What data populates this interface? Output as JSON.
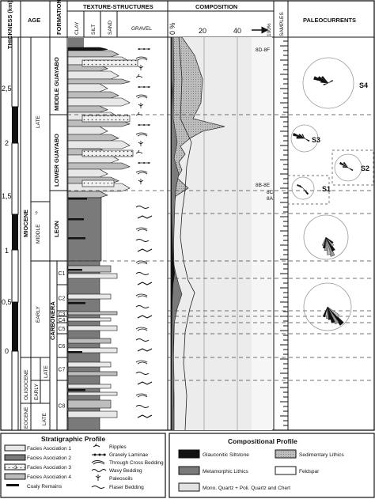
{
  "headers": {
    "thickness": "THICKNESS (km)",
    "age": "AGE",
    "formation": "FORMATION",
    "texture_structures": "TEXTURE-STRUCTURES",
    "clay": "CLAY",
    "silt": "SILT",
    "sand": "SAND",
    "gravel": "GRAVEL",
    "composition": "COMPOSITION",
    "samples": "SAMPLES",
    "paleocurrents": "PALEOCURRENTS"
  },
  "thickness_axis": {
    "ticks": [
      "2,5",
      "2",
      "1,5",
      "1",
      "0,5",
      "0"
    ]
  },
  "composition_axis": {
    "ticks": [
      "0 %",
      "20",
      "40",
      "100%"
    ]
  },
  "epochs": [
    "MIOCENE",
    "OLIGOCENE",
    "EOCENE"
  ],
  "miocene_subdivisions": [
    "LATE",
    "MIDDLE",
    "EARLY"
  ],
  "oligocene_subdivisions": [
    "LATE",
    "EARLY"
  ],
  "eocene_subdivisions": [
    "LATE"
  ],
  "question_mark": "?",
  "formations": [
    "MIDDLE GUAYABO",
    "LOWER GUAYABO",
    "LEON",
    "CARBONERA"
  ],
  "carbonera_members": [
    "C1",
    "C2",
    "C3",
    "C4",
    "C5",
    "C6",
    "C7",
    "C8"
  ],
  "sample_labels": [
    "8D-8F",
    "8B-8E",
    "8C",
    "8A"
  ],
  "paleocurrent_stations": [
    "S4",
    "S3",
    "S2",
    "S1"
  ],
  "stratigraphic_legend": {
    "title": "Stratigraphic Profile",
    "facies": [
      "Facies Asociation 1",
      "Facies Asociation 2",
      "Facies Asociation 3",
      "Facies Asociation 4"
    ],
    "extra": "Coaly Remains",
    "structures": [
      "Ripples",
      "Gravely Laminae",
      "Through Cross Bedding",
      "Wavy Bedding",
      "Paleosoils",
      "Flaser Bedding"
    ]
  },
  "compositional_legend": {
    "title": "Compositional Profile",
    "items": [
      "Glauconitic Siltstone",
      "Sedimentary Lithics",
      "Metamorphic Lithics",
      "Feldspar",
      "Mono. Quartz + Poli. Quartz and Chert"
    ]
  },
  "colors": {
    "line": "#111111",
    "facies1": "#e8e8e8",
    "facies2": "#7a7a7a",
    "facies4": "#bdbdbd",
    "coal": "#111111",
    "quartz_area": "#d9d9d9",
    "metamorphic": "#777777",
    "glauconitic": "#111111"
  }
}
